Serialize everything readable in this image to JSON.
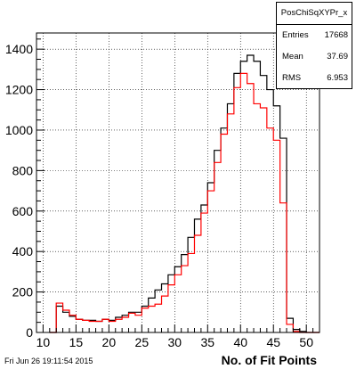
{
  "chart_data": {
    "type": "histogram",
    "title": "",
    "xlabel": "No. of Fit Points",
    "ylabel": "",
    "xlim": [
      9,
      52
    ],
    "ylim": [
      0,
      1480
    ],
    "grid": true,
    "bin_width": 1,
    "x_ticks": [
      "10",
      "15",
      "20",
      "25",
      "30",
      "35",
      "40",
      "45",
      "50"
    ],
    "y_ticks": [
      "0",
      "200",
      "400",
      "600",
      "800",
      "1000",
      "1200",
      "1400"
    ],
    "series": [
      {
        "color": "#000000",
        "bins_start": 11,
        "values": [
          0,
          130,
          100,
          80,
          65,
          60,
          60,
          55,
          65,
          60,
          75,
          85,
          100,
          100,
          130,
          170,
          210,
          240,
          285,
          325,
          385,
          470,
          560,
          630,
          740,
          900,
          1010,
          1130,
          1280,
          1340,
          1370,
          1340,
          1270,
          1200,
          1120,
          960,
          70,
          15,
          5,
          0,
          0
        ]
      },
      {
        "color": "#ff0000",
        "bins_start": 11,
        "values": [
          0,
          145,
          110,
          85,
          65,
          60,
          55,
          55,
          65,
          55,
          65,
          75,
          95,
          85,
          120,
          130,
          140,
          180,
          235,
          285,
          330,
          390,
          480,
          590,
          700,
          840,
          980,
          1080,
          1210,
          1280,
          1230,
          1130,
          1110,
          1010,
          950,
          640,
          40,
          5,
          0,
          0,
          0
        ]
      }
    ]
  },
  "stats": {
    "name": "PosChiSqXYPr_x",
    "entries_label": "Entries",
    "entries_value": "17668",
    "mean_label": "Mean",
    "mean_value": "37.69",
    "rms_label": "RMS",
    "rms_value": "6.953"
  },
  "footer": {
    "timestamp": "Fri Jun 26 19:11:54 2015"
  },
  "colors": {
    "frame": "#000000",
    "grid": "#000000",
    "background": "#ffffff"
  }
}
